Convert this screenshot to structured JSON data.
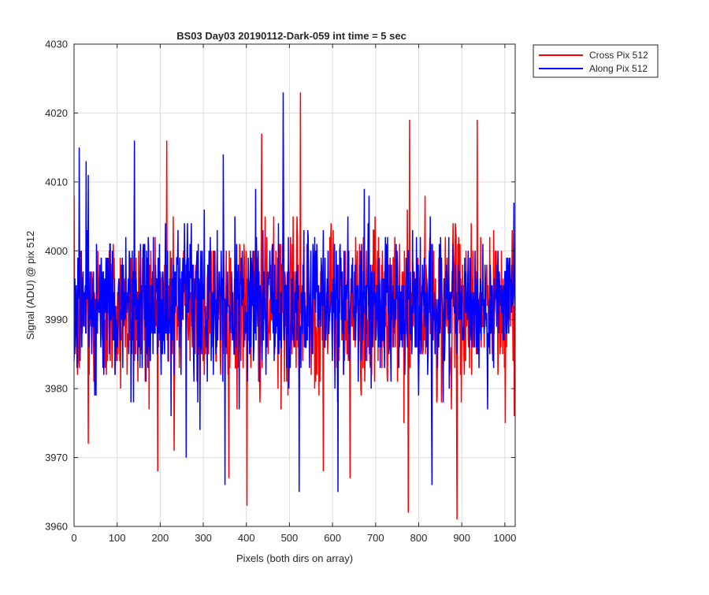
{
  "chart_data": {
    "type": "line",
    "title": "BS03 Day03 20190112-Dark-059 int time = 5 sec",
    "xlabel": "Pixels (both dirs on array)",
    "ylabel": "Signal (ADU) @ pix 512",
    "xlim": [
      0,
      1024
    ],
    "ylim": [
      3960,
      4030
    ],
    "xticks": [
      "0",
      "100",
      "200",
      "300",
      "400",
      "500",
      "600",
      "700",
      "800",
      "900",
      "1000"
    ],
    "yticks": [
      "3960",
      "3970",
      "3980",
      "3990",
      "4000",
      "4010",
      "4020",
      "4030"
    ],
    "grid": true,
    "legend_position": "outside-top-right",
    "series": [
      {
        "name": "Cross Pix 512",
        "color": "#ff0000",
        "n_points": 1024,
        "mean": 3991.5,
        "std": 5.8,
        "min": 3961,
        "max": 4023,
        "notable_points": [
          {
            "x": 8,
            "y": 3982
          },
          {
            "x": 33,
            "y": 3972
          },
          {
            "x": 215,
            "y": 4016
          },
          {
            "x": 232,
            "y": 3971
          },
          {
            "x": 401,
            "y": 3963
          },
          {
            "x": 435,
            "y": 4017
          },
          {
            "x": 525,
            "y": 4023
          },
          {
            "x": 578,
            "y": 3968
          },
          {
            "x": 640,
            "y": 3967
          },
          {
            "x": 775,
            "y": 3962
          },
          {
            "x": 778,
            "y": 4019
          },
          {
            "x": 888,
            "y": 3961
          },
          {
            "x": 935,
            "y": 4019
          },
          {
            "x": 1000,
            "y": 3975
          }
        ]
      },
      {
        "name": "Along Pix 512",
        "color": "#0000ff",
        "n_points": 1024,
        "mean": 3992,
        "std": 5.5,
        "min": 3965,
        "max": 4023,
        "notable_points": [
          {
            "x": 12,
            "y": 4015
          },
          {
            "x": 28,
            "y": 4013
          },
          {
            "x": 140,
            "y": 4016
          },
          {
            "x": 260,
            "y": 3970
          },
          {
            "x": 350,
            "y": 3966
          },
          {
            "x": 485,
            "y": 4023
          },
          {
            "x": 522,
            "y": 3965
          },
          {
            "x": 612,
            "y": 3965
          },
          {
            "x": 830,
            "y": 3966
          },
          {
            "x": 1020,
            "y": 4007
          }
        ]
      }
    ]
  }
}
